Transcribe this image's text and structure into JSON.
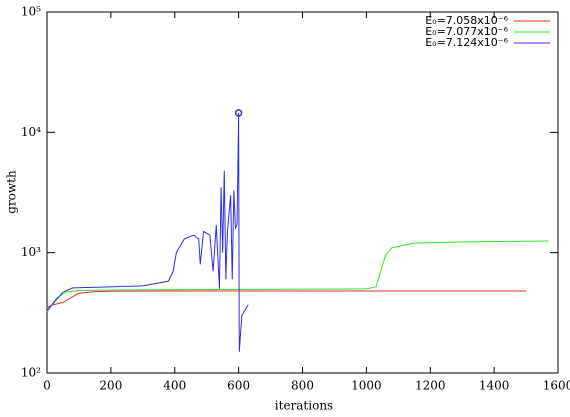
{
  "chart_data": {
    "type": "line",
    "x_label": "iterations",
    "y_label": "growth",
    "log_y": true,
    "xlim": [
      0,
      1600
    ],
    "ylim": [
      100,
      100000
    ],
    "xticks": [
      0,
      200,
      400,
      600,
      800,
      1000,
      1200,
      1400,
      1600
    ],
    "yticks": [
      {
        "value": 100,
        "label": "10²"
      },
      {
        "value": 1000,
        "label": "10³"
      },
      {
        "value": 10000,
        "label": "10⁴"
      },
      {
        "value": 100000,
        "label": "10⁵"
      }
    ],
    "legend": "top-right",
    "series": [
      {
        "name": "E₀=7.058x10⁻⁶",
        "color": "#e03030",
        "x": [
          0,
          20,
          50,
          80,
          100,
          150,
          200,
          400,
          1000,
          1500
        ],
        "values": [
          350,
          370,
          385,
          430,
          460,
          475,
          478,
          480,
          480,
          480
        ]
      },
      {
        "name": "E₀=7.077x10⁻⁶",
        "color": "#30e030",
        "x": [
          0,
          30,
          60,
          100,
          200,
          1000,
          1030,
          1045,
          1060,
          1080,
          1150,
          1300,
          1570
        ],
        "values": [
          320,
          420,
          470,
          485,
          490,
          500,
          520,
          700,
          950,
          1100,
          1200,
          1230,
          1250
        ]
      },
      {
        "name": "E₀=7.124x10⁻⁶",
        "color": "#3030e0",
        "x": [
          0,
          50,
          80,
          200,
          300,
          380,
          395,
          405,
          430,
          460,
          475,
          480,
          490,
          510,
          520,
          530,
          540,
          545,
          550,
          555,
          560,
          565,
          575,
          580,
          585,
          590,
          595,
          600,
          602,
          610,
          630
        ],
        "values": [
          330,
          470,
          510,
          520,
          530,
          580,
          700,
          1000,
          1300,
          1400,
          1300,
          800,
          1500,
          1400,
          700,
          1700,
          500,
          3500,
          1000,
          4800,
          600,
          1500,
          3000,
          600,
          3300,
          1600,
          1700,
          14500,
          150,
          300,
          370
        ],
        "highlight": {
          "x": 600,
          "y": 14500
        }
      }
    ]
  }
}
